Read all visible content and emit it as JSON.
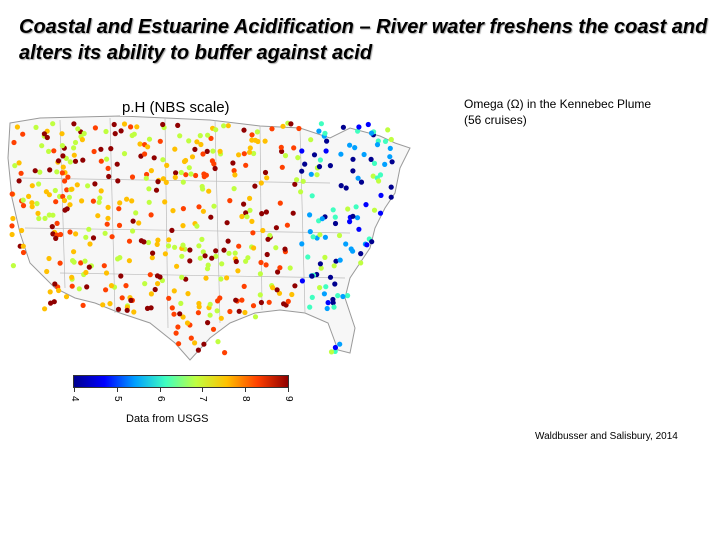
{
  "title": "Coastal and Estuarine Acidification – River water freshens the coast and alters its ability to buffer against acid",
  "map": {
    "label": "p.H (NBS scale)",
    "colorbar_ticks": [
      "4",
      "5",
      "6",
      "7",
      "8",
      "9"
    ],
    "colormap": [
      "#00008f",
      "#0000ff",
      "#00a0ff",
      "#40ffc0",
      "#c0ff40",
      "#ffc000",
      "#ff4000",
      "#900000"
    ],
    "source": "Data from USGS"
  },
  "plume": {
    "label": "Omega (Ω) in the Kennebec Plume (56 cruises)"
  },
  "citation": "Waldbusser and Salisbury, 2014"
}
